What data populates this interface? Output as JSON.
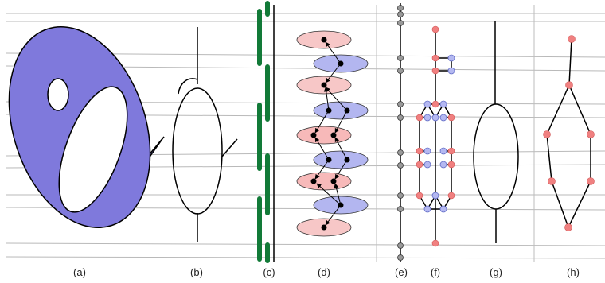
{
  "panel_labels": {
    "a": "(a)",
    "b": "(b)",
    "c": "(c)",
    "d": "(d)",
    "e": "(e)",
    "f": "(f)",
    "g": "(g)",
    "h": "(h)"
  },
  "colors": {
    "guide_line": "#b9b9b9",
    "separator": "#bdbdbd",
    "torus_fill": "#7f79dc",
    "green_bar": "#127a38",
    "red_node": "#f08080",
    "red_ellipse": "#f7c7c7",
    "blue_node": "#b4b8f1",
    "blue_ellipse": "#b3b6f0",
    "gray_node": "#9a9a9a",
    "stroke": "#000000"
  }
}
